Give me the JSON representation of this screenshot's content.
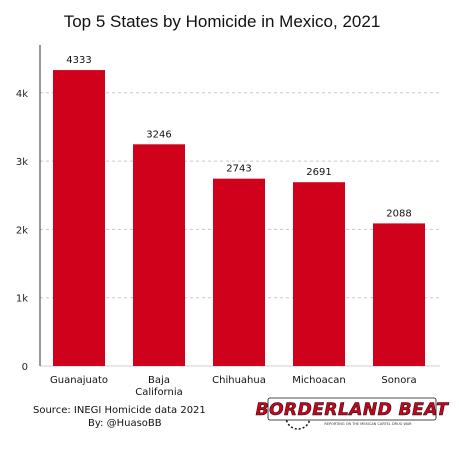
{
  "chart_data": {
    "type": "bar",
    "title": "Top 5 States by Homicide in Mexico, 2021",
    "categories": [
      [
        "Guanajuato"
      ],
      [
        "Baja",
        "California"
      ],
      [
        "Chihuahua"
      ],
      [
        "Michoacan"
      ],
      [
        "Sonora"
      ]
    ],
    "values": [
      4333,
      3246,
      2743,
      2691,
      2088
    ],
    "data_labels": [
      "4333",
      "3246",
      "2743",
      "2691",
      "2088"
    ],
    "ylim": [
      0,
      4700
    ],
    "yticks": [
      0,
      1000,
      2000,
      3000,
      4000
    ],
    "ytick_labels": [
      "0",
      "1k",
      "2k",
      "3k",
      "4k"
    ],
    "xlabel": "",
    "ylabel": "",
    "grid": true,
    "bar_color": "#d0021b"
  },
  "source": {
    "line1": "Source: INEGI Homicide data 2021",
    "line2": "By: @HuasoBB"
  },
  "logo": {
    "text": "BORDERLAND BEAT",
    "subtext": "REPORTING ON THE MEXICAN CARTEL DRUG WAR"
  }
}
